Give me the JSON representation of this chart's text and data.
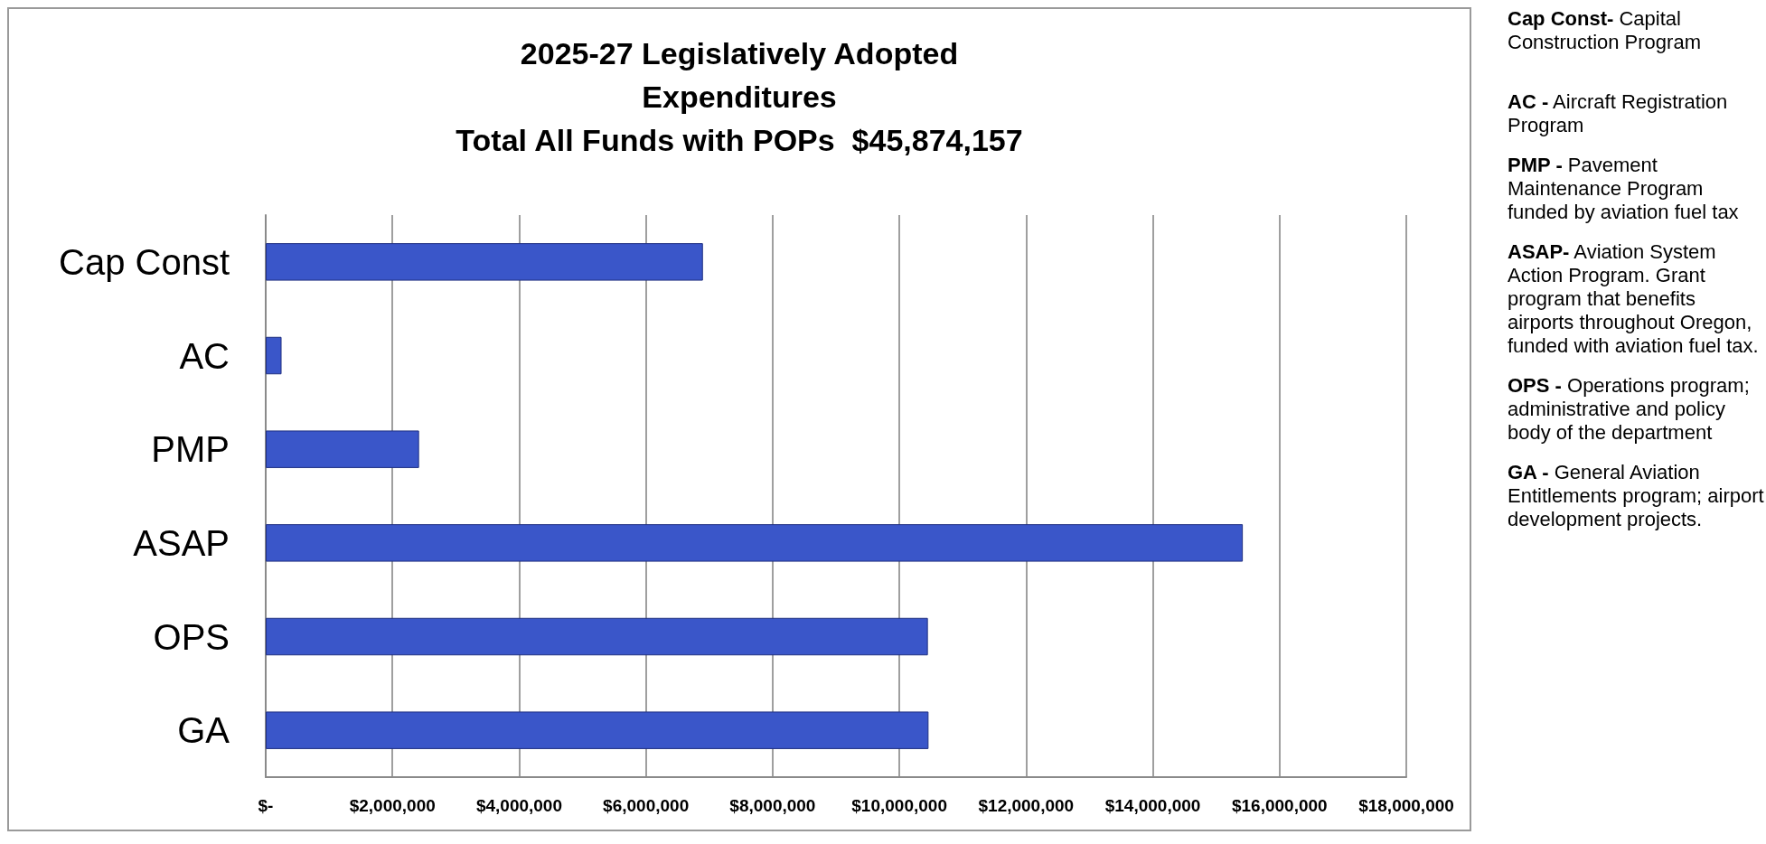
{
  "chart_data": {
    "type": "bar",
    "orientation": "horizontal",
    "title": "2025-27 Legislatively Adopted\nExpenditures\nTotal All Funds with POPs  $45,874,157",
    "categories": [
      "Cap Const",
      "AC",
      "PMP",
      "ASAP",
      "OPS",
      "GA"
    ],
    "values": [
      6900000,
      250000,
      2420000,
      15420000,
      10450000,
      10460000
    ],
    "color": "#3a56c9",
    "xlim": [
      0,
      18000000
    ],
    "xticks": [
      {
        "value": 0,
        "label": "$-"
      },
      {
        "value": 2000000,
        "label": "$2,000,000"
      },
      {
        "value": 4000000,
        "label": "$4,000,000"
      },
      {
        "value": 6000000,
        "label": "$6,000,000"
      },
      {
        "value": 8000000,
        "label": "$8,000,000"
      },
      {
        "value": 10000000,
        "label": "$10,000,000"
      },
      {
        "value": 12000000,
        "label": "$12,000,000"
      },
      {
        "value": 14000000,
        "label": "$14,000,000"
      },
      {
        "value": 16000000,
        "label": "$16,000,000"
      },
      {
        "value": 18000000,
        "label": "$18,000,000"
      }
    ],
    "grid": "x",
    "annotations": [
      "Cap Const- Capital Construction Program",
      "AC - Aircraft Registration Program",
      "PMP - Pavement Maintenance Program funded by aviation fuel tax",
      "ASAP- Aviation System Action Program. Grant program that benefits airports throughout Oregon, funded with aviation fuel tax.",
      "OPS - Operations program; administrative and policy body of the department",
      "GA - General Aviation Entitlements program; airport development projects."
    ]
  }
}
